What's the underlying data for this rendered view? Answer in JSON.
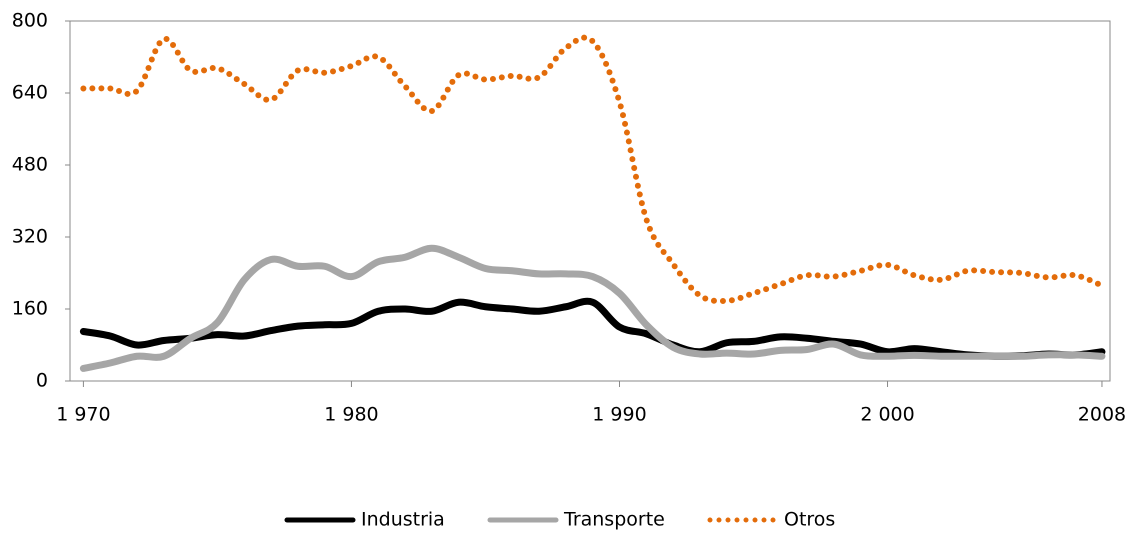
{
  "chart_data": {
    "type": "line",
    "x": [
      1970,
      1971,
      1972,
      1973,
      1974,
      1975,
      1976,
      1977,
      1978,
      1979,
      1980,
      1981,
      1982,
      1983,
      1984,
      1985,
      1986,
      1987,
      1988,
      1989,
      1990,
      1991,
      1992,
      1993,
      1994,
      1995,
      1996,
      1997,
      1998,
      1999,
      2000,
      2001,
      2002,
      2003,
      2004,
      2005,
      2006,
      2007,
      2008
    ],
    "series": [
      {
        "name": "Industria",
        "color": "#000000",
        "style": "solid",
        "values": [
          110,
          100,
          80,
          90,
          95,
          103,
          100,
          112,
          122,
          125,
          128,
          155,
          160,
          155,
          175,
          165,
          160,
          155,
          165,
          175,
          120,
          105,
          80,
          65,
          85,
          88,
          98,
          95,
          88,
          82,
          65,
          72,
          65,
          58,
          55,
          56,
          60,
          58,
          65
        ]
      },
      {
        "name": "Transporte",
        "color": "#a6a6a6",
        "style": "solid",
        "values": [
          28,
          40,
          55,
          55,
          95,
          130,
          225,
          270,
          255,
          255,
          232,
          265,
          275,
          295,
          275,
          250,
          245,
          238,
          238,
          232,
          195,
          125,
          75,
          60,
          62,
          60,
          68,
          70,
          82,
          58,
          55,
          57,
          55,
          55,
          55,
          55,
          58,
          58,
          55
        ]
      },
      {
        "name": "Otros",
        "color": "#e36c0a",
        "style": "dotted",
        "values": [
          650,
          650,
          645,
          760,
          690,
          695,
          660,
          625,
          690,
          685,
          700,
          720,
          655,
          600,
          680,
          670,
          678,
          675,
          740,
          755,
          620,
          360,
          260,
          190,
          178,
          195,
          215,
          235,
          232,
          245,
          258,
          235,
          225,
          245,
          242,
          240,
          230,
          235,
          212
        ]
      }
    ],
    "xlim": [
      1969.5,
      2008.3
    ],
    "xticks": [
      {
        "value": 1970,
        "label": "1 970"
      },
      {
        "value": 1980,
        "label": "1 980"
      },
      {
        "value": 1990,
        "label": "1 990"
      },
      {
        "value": 2000,
        "label": "2 000"
      },
      2008
    ],
    "ylim": [
      0,
      800
    ],
    "yticks": [
      0,
      160,
      320,
      480,
      640,
      800
    ],
    "grid": false,
    "legend": "bottom"
  }
}
